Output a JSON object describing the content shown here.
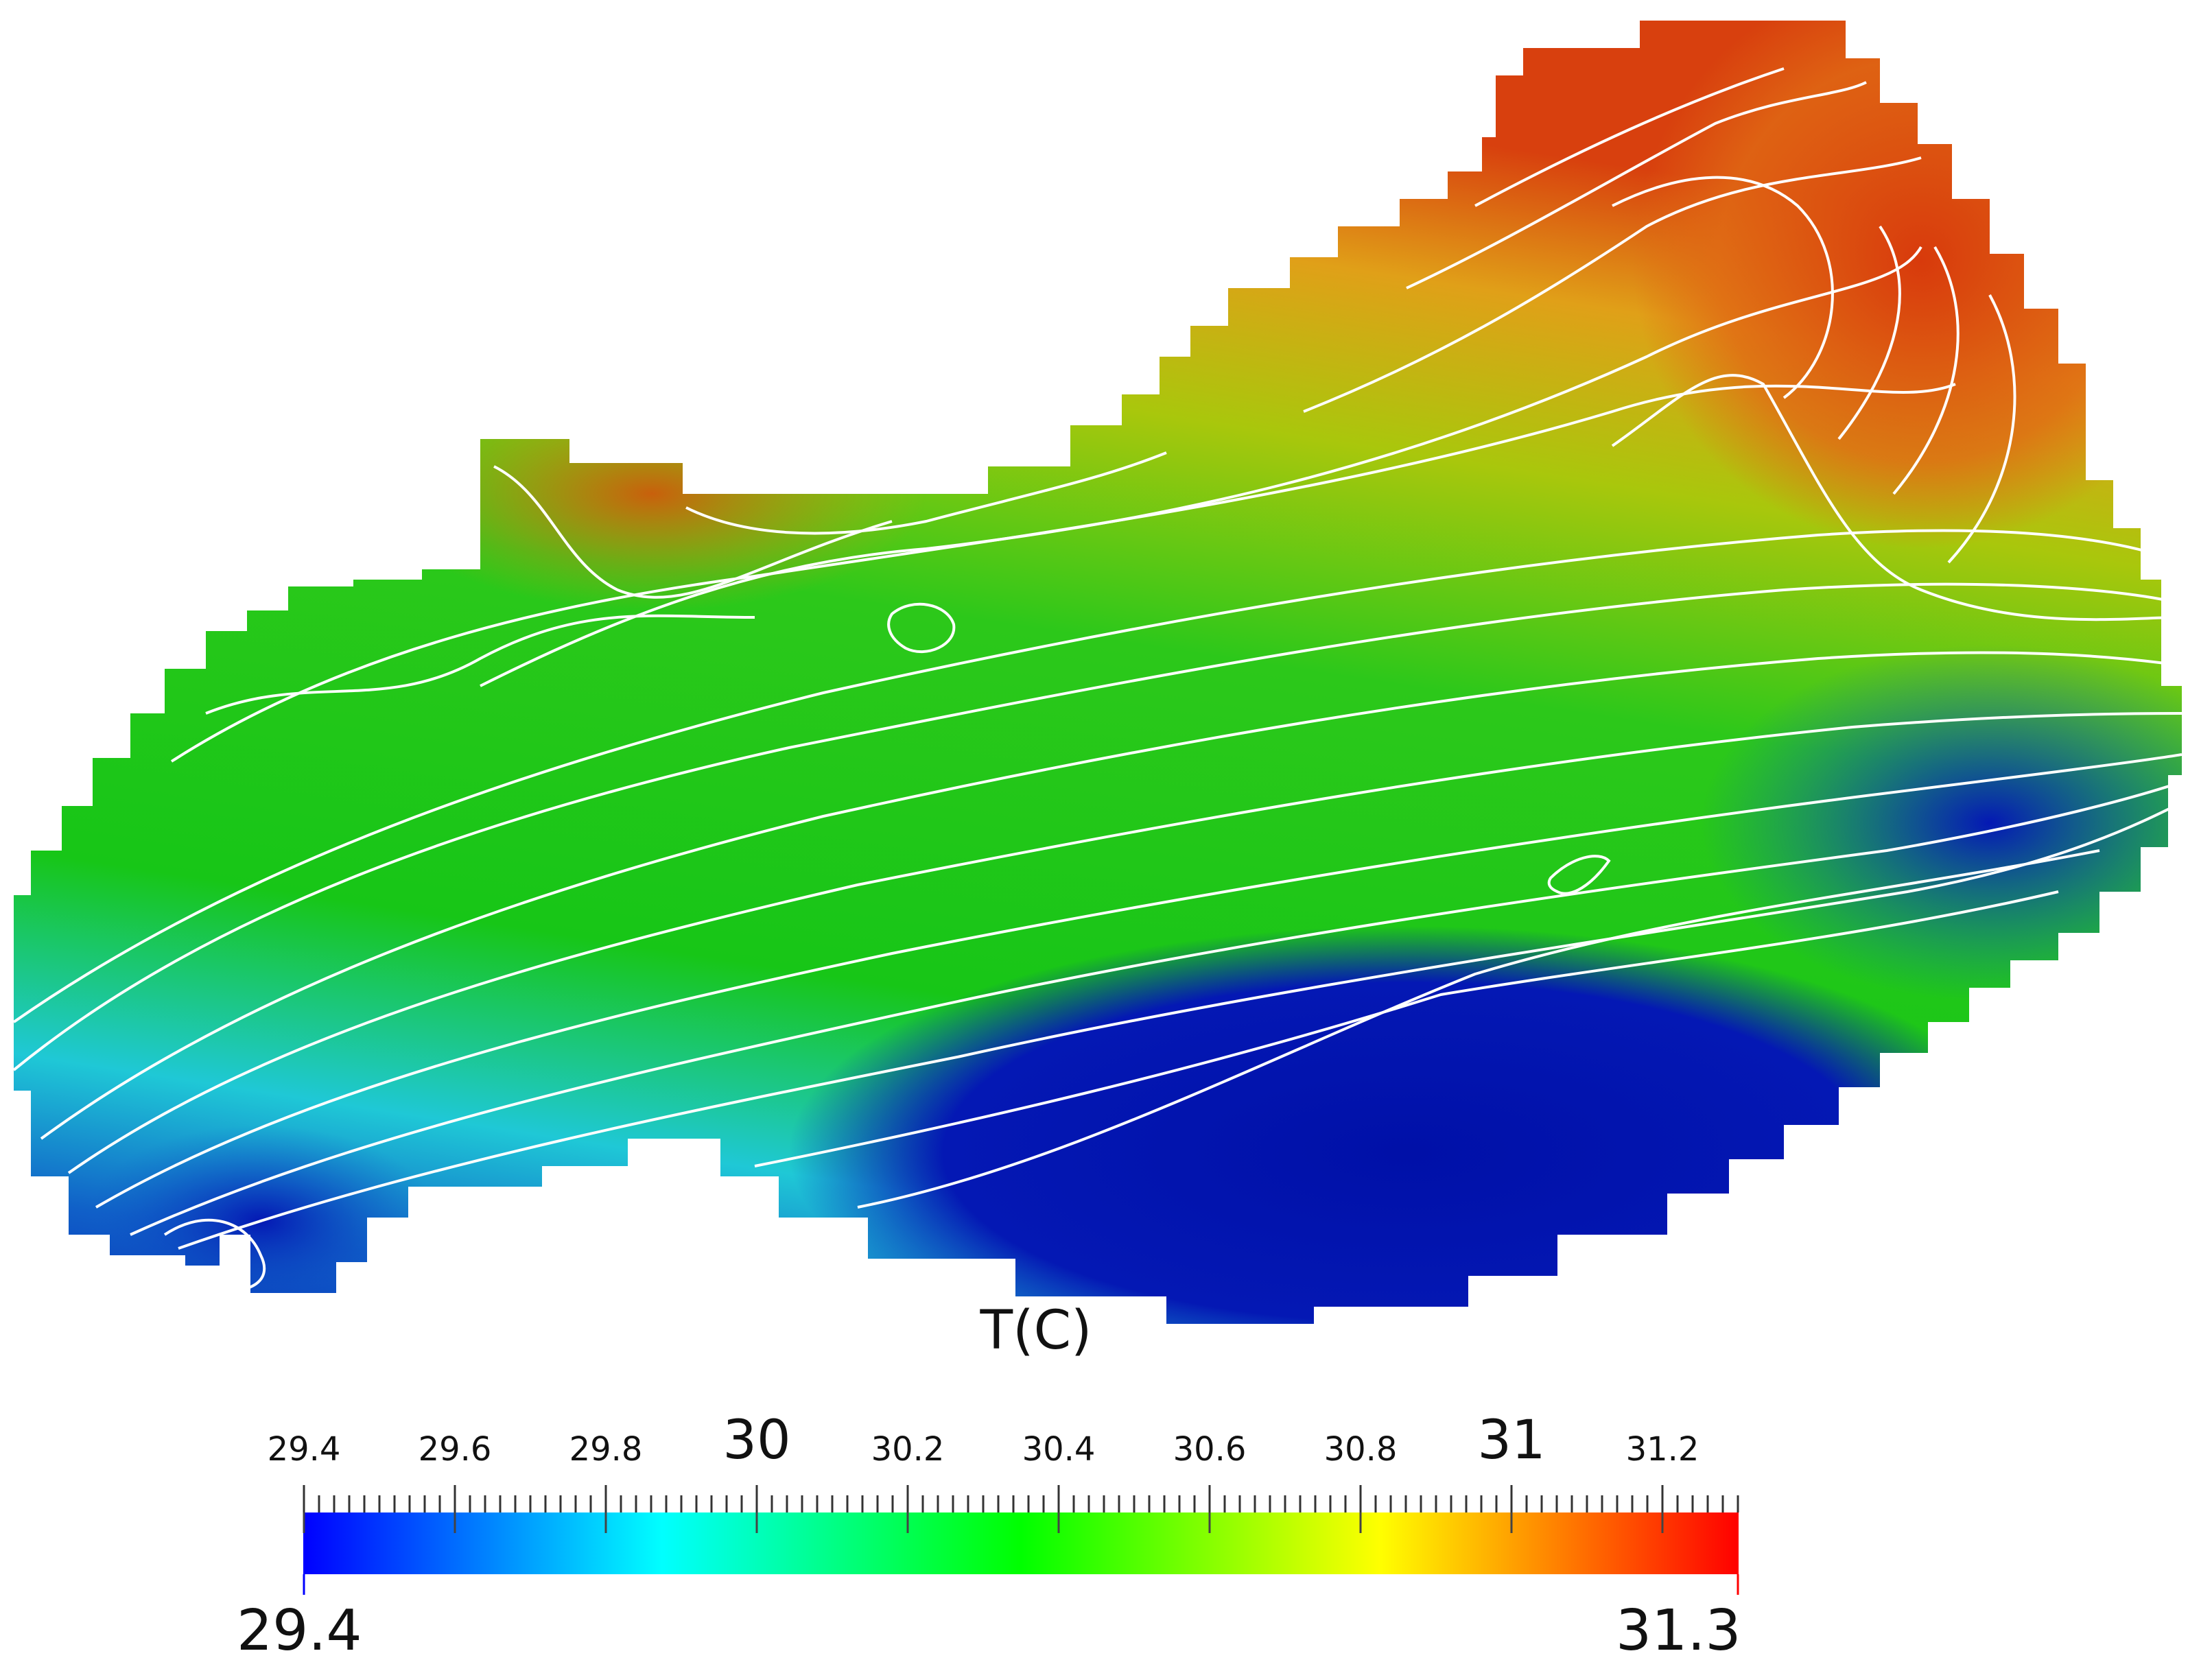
{
  "chart_data": {
    "type": "heatmap",
    "title": "",
    "colorbar": {
      "label": "T(C)",
      "min": 29.4,
      "max": 31.3,
      "min_label": "29.4",
      "max_label": "31.3",
      "colormap": [
        "#0000ff",
        "#00ffff",
        "#00ff00",
        "#ffff00",
        "#ff0000"
      ],
      "ticks": [
        {
          "value": 29.4,
          "label": "29.4",
          "major": false
        },
        {
          "value": 29.6,
          "label": "29.6",
          "major": false
        },
        {
          "value": 29.8,
          "label": "29.8",
          "major": false
        },
        {
          "value": 30.0,
          "label": "30",
          "major": true
        },
        {
          "value": 30.2,
          "label": "30.2",
          "major": false
        },
        {
          "value": 30.4,
          "label": "30.4",
          "major": false
        },
        {
          "value": 30.6,
          "label": "30.6",
          "major": false
        },
        {
          "value": 30.8,
          "label": "30.8",
          "major": false
        },
        {
          "value": 31.0,
          "label": "31",
          "major": true
        },
        {
          "value": 31.2,
          "label": "31.2",
          "major": false
        }
      ],
      "minor_tick_step": 0.02
    },
    "field_colors": {
      "cold": "#0418b4",
      "cool": "#1fc8d6",
      "mid": "#17c617",
      "warm": "#a9c70c",
      "hot": "#d8400e"
    },
    "contour_color": "#ffffff"
  }
}
